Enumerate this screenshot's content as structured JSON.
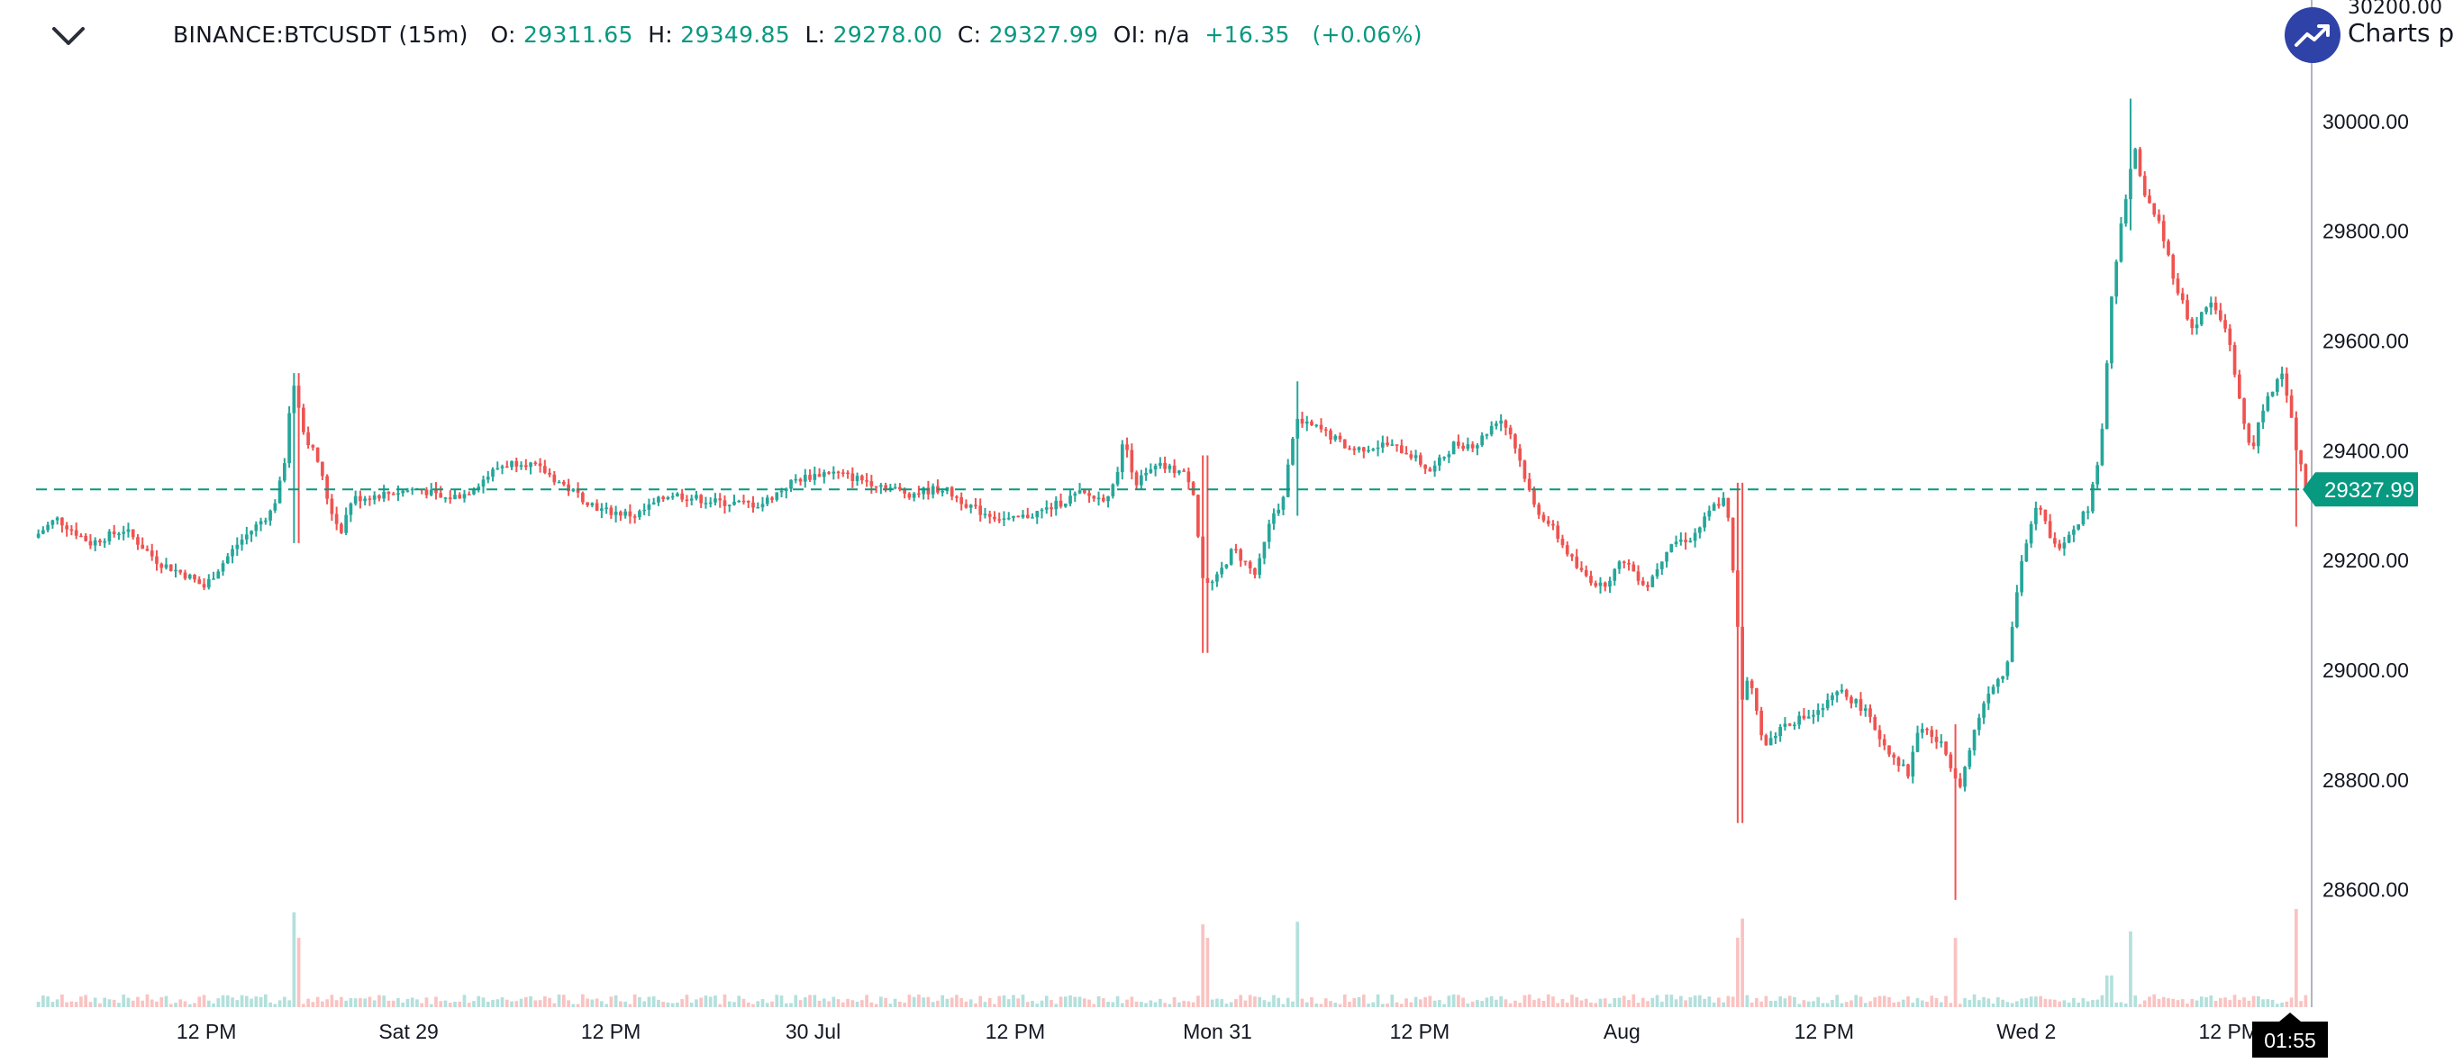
{
  "legend": {
    "symbol": "BINANCE:BTCUSDT (15m)",
    "o_label": "O:",
    "o_value": "29311.65",
    "h_label": "H:",
    "h_value": "29349.85",
    "l_label": "L:",
    "l_value": "29278.00",
    "c_label": "C:",
    "c_value": "29327.99",
    "oi_label": "OI:",
    "oi_value": "n/a",
    "change": "+16.35",
    "change_pct": "(+0.06%)"
  },
  "branding": {
    "text": "Charts p",
    "logo_icon": "trend-up-icon"
  },
  "colors": {
    "up": "#26a69a",
    "down": "#ef5350",
    "line": "#089981",
    "axis_text": "#131722"
  },
  "chart_data": {
    "type": "candlestick",
    "symbol": "BINANCE:BTCUSDT",
    "interval": "15m",
    "y_axis": {
      "side": "right",
      "range": [
        28460,
        30200
      ],
      "ticks": [
        "30200.00",
        "30000.00",
        "29800.00",
        "29600.00",
        "29400.00",
        "29200.00",
        "29000.00",
        "28800.00",
        "28600.00"
      ]
    },
    "x_axis": {
      "ticks": [
        {
          "label": "12 PM",
          "t": 0.075
        },
        {
          "label": "Sat 29",
          "t": 0.164
        },
        {
          "label": "12 PM",
          "t": 0.253
        },
        {
          "label": "30 Jul",
          "t": 0.342
        },
        {
          "label": "12 PM",
          "t": 0.431
        },
        {
          "label": "Mon 31",
          "t": 0.52
        },
        {
          "label": "12 PM",
          "t": 0.609
        },
        {
          "label": "Aug",
          "t": 0.698
        },
        {
          "label": "12 PM",
          "t": 0.787
        },
        {
          "label": "Wed 2",
          "t": 0.876
        },
        {
          "label": "12 PM",
          "t": 0.965
        }
      ]
    },
    "last_price": "29327.99",
    "countdown": "01:55",
    "price_path": [
      {
        "t": 0.0,
        "p": 29240
      },
      {
        "t": 0.01,
        "p": 29275
      },
      {
        "t": 0.025,
        "p": 29230
      },
      {
        "t": 0.04,
        "p": 29255
      },
      {
        "t": 0.055,
        "p": 29195
      },
      {
        "t": 0.068,
        "p": 29170
      },
      {
        "t": 0.075,
        "p": 29150
      },
      {
        "t": 0.09,
        "p": 29230
      },
      {
        "t": 0.105,
        "p": 29290
      },
      {
        "t": 0.11,
        "p": 29360
      },
      {
        "t": 0.112,
        "p": 29460
      },
      {
        "t": 0.115,
        "p": 29520
      },
      {
        "t": 0.118,
        "p": 29440
      },
      {
        "t": 0.125,
        "p": 29380
      },
      {
        "t": 0.13,
        "p": 29300
      },
      {
        "t": 0.135,
        "p": 29250
      },
      {
        "t": 0.14,
        "p": 29310
      },
      {
        "t": 0.155,
        "p": 29320
      },
      {
        "t": 0.17,
        "p": 29330
      },
      {
        "t": 0.18,
        "p": 29310
      },
      {
        "t": 0.19,
        "p": 29320
      },
      {
        "t": 0.205,
        "p": 29370
      },
      {
        "t": 0.215,
        "p": 29380
      },
      {
        "t": 0.225,
        "p": 29360
      },
      {
        "t": 0.235,
        "p": 29330
      },
      {
        "t": 0.25,
        "p": 29290
      },
      {
        "t": 0.265,
        "p": 29280
      },
      {
        "t": 0.28,
        "p": 29320
      },
      {
        "t": 0.3,
        "p": 29305
      },
      {
        "t": 0.32,
        "p": 29300
      },
      {
        "t": 0.335,
        "p": 29345
      },
      {
        "t": 0.35,
        "p": 29360
      },
      {
        "t": 0.37,
        "p": 29340
      },
      {
        "t": 0.385,
        "p": 29320
      },
      {
        "t": 0.4,
        "p": 29330
      },
      {
        "t": 0.415,
        "p": 29290
      },
      {
        "t": 0.43,
        "p": 29270
      },
      {
        "t": 0.445,
        "p": 29290
      },
      {
        "t": 0.46,
        "p": 29320
      },
      {
        "t": 0.47,
        "p": 29310
      },
      {
        "t": 0.475,
        "p": 29330
      },
      {
        "t": 0.48,
        "p": 29420
      },
      {
        "t": 0.485,
        "p": 29340
      },
      {
        "t": 0.495,
        "p": 29370
      },
      {
        "t": 0.505,
        "p": 29360
      },
      {
        "t": 0.51,
        "p": 29340
      },
      {
        "t": 0.515,
        "p": 29150
      },
      {
        "t": 0.52,
        "p": 29160
      },
      {
        "t": 0.528,
        "p": 29220
      },
      {
        "t": 0.538,
        "p": 29170
      },
      {
        "t": 0.545,
        "p": 29280
      },
      {
        "t": 0.55,
        "p": 29310
      },
      {
        "t": 0.555,
        "p": 29450
      },
      {
        "t": 0.565,
        "p": 29440
      },
      {
        "t": 0.58,
        "p": 29400
      },
      {
        "t": 0.595,
        "p": 29410
      },
      {
        "t": 0.605,
        "p": 29395
      },
      {
        "t": 0.615,
        "p": 29360
      },
      {
        "t": 0.625,
        "p": 29410
      },
      {
        "t": 0.635,
        "p": 29410
      },
      {
        "t": 0.645,
        "p": 29460
      },
      {
        "t": 0.65,
        "p": 29430
      },
      {
        "t": 0.655,
        "p": 29370
      },
      {
        "t": 0.66,
        "p": 29300
      },
      {
        "t": 0.668,
        "p": 29260
      },
      {
        "t": 0.68,
        "p": 29180
      },
      {
        "t": 0.69,
        "p": 29150
      },
      {
        "t": 0.7,
        "p": 29200
      },
      {
        "t": 0.71,
        "p": 29150
      },
      {
        "t": 0.72,
        "p": 29230
      },
      {
        "t": 0.73,
        "p": 29240
      },
      {
        "t": 0.74,
        "p": 29300
      },
      {
        "t": 0.745,
        "p": 29310
      },
      {
        "t": 0.75,
        "p": 29080
      },
      {
        "t": 0.752,
        "p": 28950
      },
      {
        "t": 0.755,
        "p": 28980
      },
      {
        "t": 0.762,
        "p": 28860
      },
      {
        "t": 0.77,
        "p": 28900
      },
      {
        "t": 0.785,
        "p": 28920
      },
      {
        "t": 0.795,
        "p": 28960
      },
      {
        "t": 0.805,
        "p": 28930
      },
      {
        "t": 0.815,
        "p": 28860
      },
      {
        "t": 0.825,
        "p": 28810
      },
      {
        "t": 0.83,
        "p": 28900
      },
      {
        "t": 0.84,
        "p": 28860
      },
      {
        "t": 0.848,
        "p": 28790
      },
      {
        "t": 0.855,
        "p": 28900
      },
      {
        "t": 0.86,
        "p": 28960
      },
      {
        "t": 0.868,
        "p": 29000
      },
      {
        "t": 0.875,
        "p": 29200
      },
      {
        "t": 0.882,
        "p": 29300
      },
      {
        "t": 0.89,
        "p": 29220
      },
      {
        "t": 0.898,
        "p": 29260
      },
      {
        "t": 0.905,
        "p": 29300
      },
      {
        "t": 0.91,
        "p": 29420
      },
      {
        "t": 0.915,
        "p": 29700
      },
      {
        "t": 0.92,
        "p": 29840
      },
      {
        "t": 0.925,
        "p": 29950
      },
      {
        "t": 0.928,
        "p": 29870
      },
      {
        "t": 0.935,
        "p": 29820
      },
      {
        "t": 0.943,
        "p": 29700
      },
      {
        "t": 0.95,
        "p": 29620
      },
      {
        "t": 0.958,
        "p": 29670
      },
      {
        "t": 0.966,
        "p": 29610
      },
      {
        "t": 0.972,
        "p": 29460
      },
      {
        "t": 0.976,
        "p": 29400
      },
      {
        "t": 0.982,
        "p": 29480
      },
      {
        "t": 0.99,
        "p": 29550
      },
      {
        "t": 0.995,
        "p": 29420
      },
      {
        "t": 1.0,
        "p": 29328
      }
    ],
    "spikes": [
      {
        "t": 0.115,
        "low": 29230,
        "high": 29540
      },
      {
        "t": 0.515,
        "low": 29030,
        "high": 29390
      },
      {
        "t": 0.555,
        "low": 29280,
        "high": 29525
      },
      {
        "t": 0.75,
        "low": 28720,
        "high": 29340
      },
      {
        "t": 0.845,
        "low": 28580,
        "high": 28900
      },
      {
        "t": 0.922,
        "low": 29800,
        "high": 30040
      },
      {
        "t": 0.995,
        "low": 29260,
        "high": 29470
      }
    ]
  }
}
